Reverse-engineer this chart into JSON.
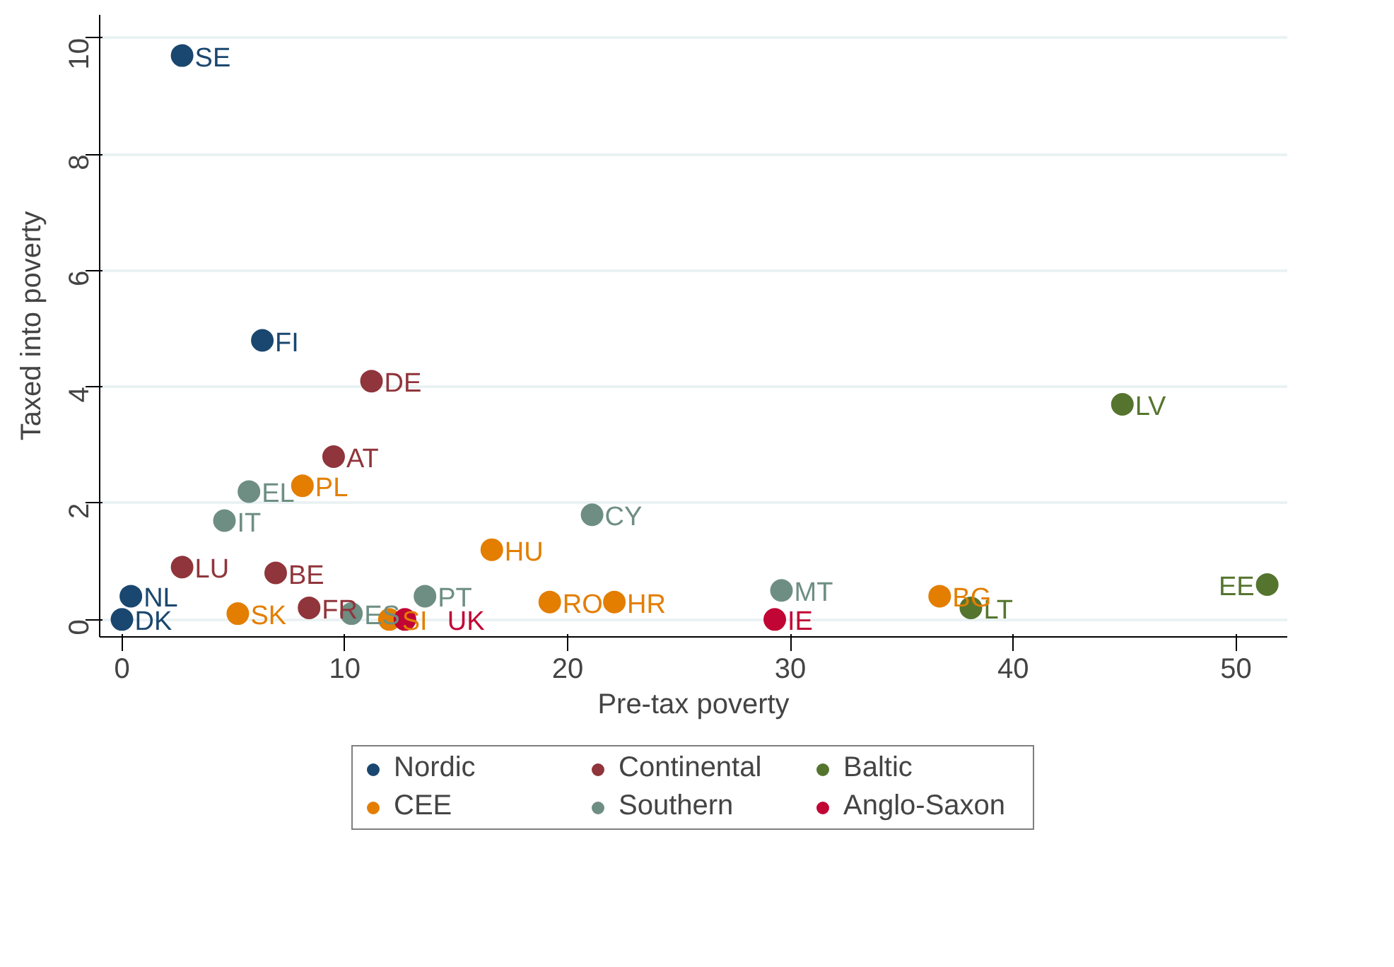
{
  "chart_data": {
    "type": "scatter",
    "xlabel": "Pre-tax poverty",
    "ylabel": "Taxed into poverty",
    "xlim": [
      -1,
      52.3
    ],
    "ylim": [
      -0.3,
      10.4
    ],
    "xticks": [
      0,
      10,
      20,
      30,
      40,
      50
    ],
    "yticks": [
      0,
      2,
      4,
      6,
      8,
      10
    ],
    "grid": "y",
    "legend": "bottom",
    "marker": "circle",
    "series": [
      {
        "name": "Nordic",
        "color": "#1a476f",
        "x": [
          2.7,
          6.3,
          0.4,
          0
        ],
        "values": [
          9.7,
          4.8,
          0.4,
          0
        ]
      },
      {
        "name": "Continental",
        "color": "#90353b",
        "x": [
          11.2,
          9.5,
          2.7,
          6.9,
          8.4
        ],
        "values": [
          4.1,
          2.8,
          0.9,
          0.8,
          0.2
        ]
      },
      {
        "name": "Baltic",
        "color": "#55752f",
        "x": [
          44.9,
          51.4,
          38.1
        ],
        "values": [
          3.7,
          0.6,
          0.2
        ]
      },
      {
        "name": "CEE",
        "color": "#e37e00",
        "x": [
          8.1,
          16.6,
          5.2,
          12.0,
          19.2,
          22.1,
          36.7
        ],
        "values": [
          2.3,
          1.2,
          0.1,
          0,
          0.3,
          0.3,
          0.4
        ]
      },
      {
        "name": "Southern",
        "color": "#6e8e84",
        "x": [
          5.7,
          4.6,
          21.1,
          10.3,
          13.6,
          29.6
        ],
        "values": [
          2.2,
          1.7,
          1.8,
          0.1,
          0.4,
          0.5
        ]
      },
      {
        "name": "Anglo-Saxon",
        "color": "#c10534",
        "x": [
          12.7,
          29.3
        ],
        "values": [
          0,
          0
        ]
      }
    ],
    "annotations": [
      {
        "text": "SE",
        "x": 2.7,
        "y": 9.7
      },
      {
        "text": "FI",
        "x": 6.3,
        "y": 4.8
      },
      {
        "text": "NL",
        "x": 0.4,
        "y": 0.4
      },
      {
        "text": "DK",
        "x": 0,
        "y": 0
      },
      {
        "text": "DE",
        "x": 11.2,
        "y": 4.1
      },
      {
        "text": "AT",
        "x": 9.5,
        "y": 2.8
      },
      {
        "text": "LU",
        "x": 2.7,
        "y": 0.9
      },
      {
        "text": "BE",
        "x": 6.9,
        "y": 0.8
      },
      {
        "text": "FR",
        "x": 8.4,
        "y": 0.2
      },
      {
        "text": "LV",
        "x": 44.9,
        "y": 3.7
      },
      {
        "text": "EE",
        "x": 51.4,
        "y": 0.6
      },
      {
        "text": "LT",
        "x": 38.1,
        "y": 0.2
      },
      {
        "text": "PL",
        "x": 8.1,
        "y": 2.3
      },
      {
        "text": "HU",
        "x": 16.6,
        "y": 1.2
      },
      {
        "text": "SK",
        "x": 5.2,
        "y": 0.1
      },
      {
        "text": "SI",
        "x": 12.0,
        "y": 0
      },
      {
        "text": "RO",
        "x": 19.2,
        "y": 0.3
      },
      {
        "text": "HR",
        "x": 22.1,
        "y": 0.3
      },
      {
        "text": "BG",
        "x": 36.7,
        "y": 0.4
      },
      {
        "text": "EL",
        "x": 5.7,
        "y": 2.2
      },
      {
        "text": "IT",
        "x": 4.6,
        "y": 1.7
      },
      {
        "text": "CY",
        "x": 21.1,
        "y": 1.8
      },
      {
        "text": "ES",
        "x": 10.3,
        "y": 0.1
      },
      {
        "text": "PT",
        "x": 13.6,
        "y": 0.4
      },
      {
        "text": "MT",
        "x": 29.6,
        "y": 0.5
      },
      {
        "text": "UK",
        "x": 12.7,
        "y": 0
      },
      {
        "text": "IE",
        "x": 29.3,
        "y": 0
      }
    ]
  }
}
